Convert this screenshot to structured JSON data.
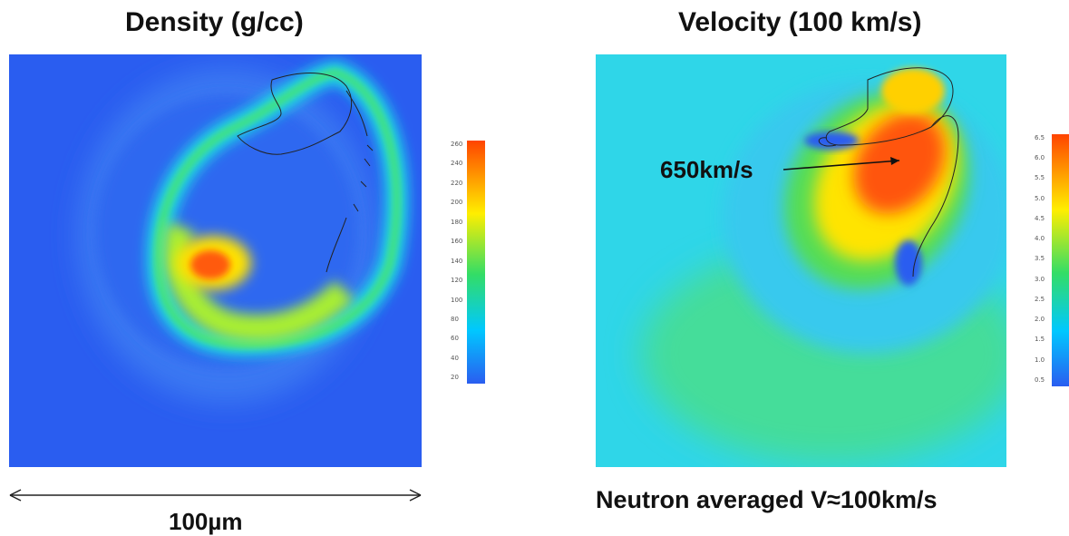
{
  "chart_data": [
    {
      "type": "heatmap",
      "title": "Density (g/cc)",
      "colormap": [
        "#2a5df0",
        "#00c8ff",
        "#33dd66",
        "#ffee00",
        "#ff4400"
      ],
      "colorbar": {
        "ticks": [
          "240",
          "220",
          "200",
          "180",
          "160",
          "140",
          "120",
          "100",
          "80",
          "60",
          "40",
          "20"
        ],
        "top_label": "260",
        "range": [
          0,
          260
        ]
      },
      "annotations": [
        {
          "text": "100µm",
          "kind": "scale-bar"
        }
      ]
    },
    {
      "type": "heatmap",
      "title": "Velocity (100 km/s)",
      "colormap": [
        "#2a5df0",
        "#00c8ff",
        "#33dd66",
        "#ffee00",
        "#ff4400"
      ],
      "colorbar": {
        "ticks": [
          "6.0",
          "5.5",
          "5.0",
          "4.5",
          "4.0",
          "3.5",
          "3.0",
          "2.5",
          "2.0",
          "1.5",
          "1.0",
          "0.5"
        ],
        "top_label": "6.5",
        "range": [
          0,
          6.5
        ]
      },
      "annotations": [
        {
          "text": "650km/s",
          "kind": "arrow-label"
        },
        {
          "text": "Neutron averaged V≈100km/s",
          "kind": "caption"
        }
      ]
    }
  ]
}
